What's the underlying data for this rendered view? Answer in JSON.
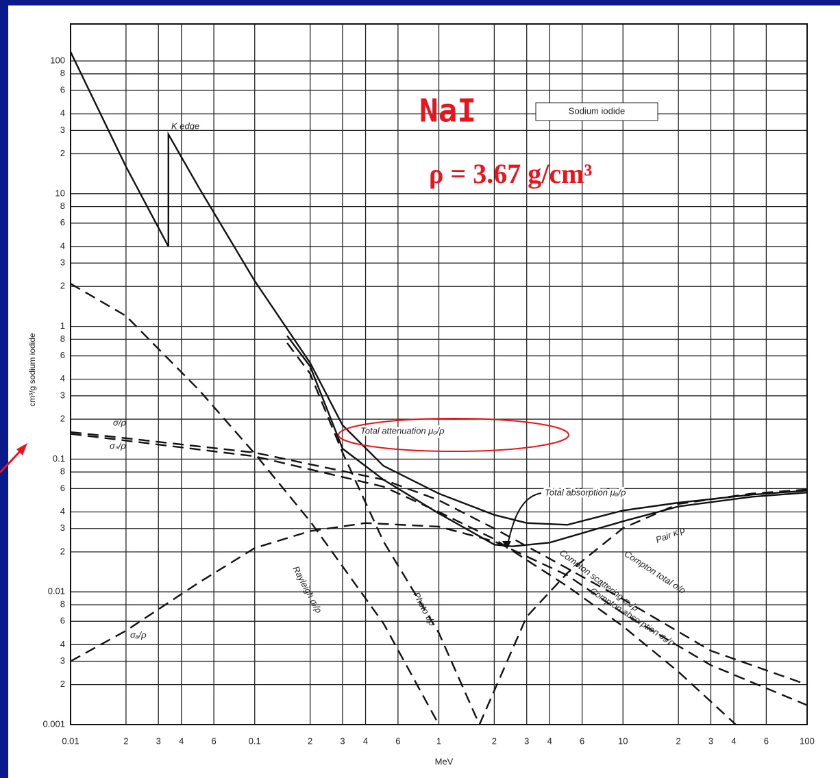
{
  "chart_data": {
    "type": "line",
    "title": "NaI",
    "material": "Sodium iodide",
    "subtitle": "ρ = 3.67 g/cm³",
    "xlabel": "MeV",
    "ylabel": "cm³/g sodium iodide",
    "annotations": [
      "K edge",
      "σ/ρ",
      "σₛ/ρ",
      "σₐ/ρ"
    ],
    "xscale": "log",
    "yscale": "log",
    "grid": true,
    "xlim": [
      0.01,
      100
    ],
    "ylim": [
      0.001,
      190
    ],
    "xticks": [
      0.01,
      {
        "value": 0.02,
        "label": "2"
      },
      {
        "value": 0.03,
        "label": "3"
      },
      {
        "value": 0.04,
        "label": "4"
      },
      {
        "value": 0.06,
        "label": "6"
      },
      0.1,
      {
        "value": 0.2,
        "label": "2"
      },
      {
        "value": 0.3,
        "label": "3"
      },
      {
        "value": 0.4,
        "label": "4"
      },
      {
        "value": 0.6,
        "label": "6"
      },
      1,
      2,
      3,
      4,
      6,
      10,
      {
        "value": 20,
        "label": "2"
      },
      {
        "value": 30,
        "label": "3"
      },
      {
        "value": 40,
        "label": "4"
      },
      {
        "value": 60,
        "label": "6"
      },
      100
    ],
    "yticks": [
      0.001,
      {
        "value": 0.002,
        "label": "2"
      },
      {
        "value": 0.003,
        "label": "3"
      },
      {
        "value": 0.004,
        "label": "4"
      },
      {
        "value": 0.006,
        "label": "6"
      },
      {
        "value": 0.008,
        "label": "8"
      },
      0.01,
      {
        "value": 0.02,
        "label": "2"
      },
      {
        "value": 0.03,
        "label": "3"
      },
      {
        "value": 0.04,
        "label": "4"
      },
      {
        "value": 0.06,
        "label": "6"
      },
      {
        "value": 0.08,
        "label": "8"
      },
      0.1,
      {
        "value": 0.2,
        "label": "2"
      },
      {
        "value": 0.3,
        "label": "3"
      },
      {
        "value": 0.4,
        "label": "4"
      },
      {
        "value": 0.6,
        "label": "6"
      },
      {
        "value": 0.8,
        "label": "8"
      },
      1,
      2,
      3,
      4,
      6,
      8,
      10,
      {
        "value": 20,
        "label": "2"
      },
      {
        "value": 30,
        "label": "3"
      },
      {
        "value": 40,
        "label": "4"
      },
      {
        "value": 60,
        "label": "6"
      },
      {
        "value": 80,
        "label": "8"
      },
      100
    ],
    "series": [
      {
        "name": "Total attenuation μₒ/ρ",
        "color": "#111111",
        "dash": false,
        "x": [
          0.01,
          0.02,
          0.034,
          0.034,
          0.05,
          0.1,
          0.2,
          0.3,
          0.5,
          1,
          2,
          3,
          5,
          10,
          20,
          50,
          100
        ],
        "values": [
          117,
          16,
          4,
          28,
          11,
          2.2,
          0.53,
          0.18,
          0.089,
          0.055,
          0.038,
          0.033,
          0.032,
          0.041,
          0.047,
          0.054,
          0.058
        ]
      },
      {
        "name": "Total absorption μₐ/ρ",
        "color": "#111111",
        "dash": false,
        "x": [
          0.15,
          0.2,
          0.3,
          0.5,
          1,
          2,
          2.5,
          4,
          10,
          20,
          50,
          100
        ],
        "values": [
          0.85,
          0.5,
          0.12,
          0.07,
          0.039,
          0.0227,
          0.022,
          0.0235,
          0.034,
          0.044,
          0.052,
          0.056
        ]
      },
      {
        "name": "Compton total σ/ρ",
        "color": "#111111",
        "dash": true,
        "x": [
          0.01,
          0.1,
          0.5,
          1,
          2,
          5,
          10,
          30,
          100
        ],
        "values": [
          0.16,
          0.112,
          0.07,
          0.049,
          0.03,
          0.015,
          0.0088,
          0.0036,
          0.002
        ]
      },
      {
        "name": "Compton scattering σₛ/ρ",
        "color": "#111111",
        "dash": true,
        "x": [
          0.01,
          0.1,
          0.5,
          1,
          2,
          5,
          10,
          20,
          41
        ],
        "values": [
          0.155,
          0.105,
          0.062,
          0.04,
          0.025,
          0.011,
          0.0055,
          0.0025,
          0.001
        ]
      },
      {
        "name": "Compton absorption σₐ/ρ",
        "color": "#111111",
        "dash": true,
        "x": [
          0.01,
          0.02,
          0.05,
          0.1,
          0.2,
          0.4,
          1,
          2,
          5,
          10,
          30,
          100
        ],
        "values": [
          0.003,
          0.0051,
          0.0118,
          0.0214,
          0.0287,
          0.033,
          0.031,
          0.024,
          0.0133,
          0.0069,
          0.0028,
          0.0014
        ]
      },
      {
        "name": "Rayleigh σᵣ/ρ",
        "color": "#111111",
        "dash": true,
        "x": [
          0.01,
          0.02,
          0.05,
          0.1,
          0.2,
          0.5,
          1
        ],
        "values": [
          2.1,
          1.2,
          0.33,
          0.11,
          0.034,
          0.0058,
          0.001
        ]
      },
      {
        "name": "Photo τ/ρ",
        "color": "#111111",
        "dash": true,
        "x": [
          0.15,
          0.2,
          0.3,
          0.5,
          1,
          1.66
        ],
        "values": [
          0.75,
          0.44,
          0.112,
          0.024,
          0.0049,
          0.001
        ]
      },
      {
        "name": "Pair κ/ρ",
        "color": "#111111",
        "dash": true,
        "x": [
          1.66,
          3,
          5,
          10,
          20,
          50,
          100
        ],
        "values": [
          0.001,
          0.0065,
          0.0139,
          0.0302,
          0.046,
          0.055,
          0.059
        ]
      }
    ]
  }
}
